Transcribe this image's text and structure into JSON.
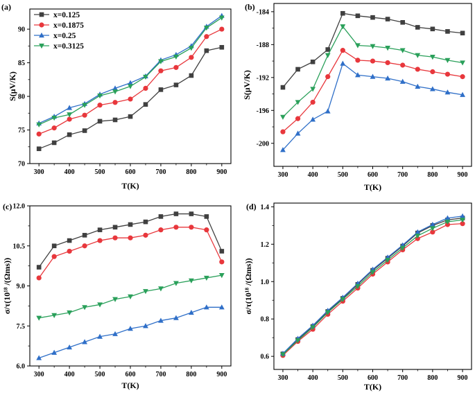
{
  "colors": {
    "x=0.125": "#404040",
    "x=0.1875": "#e8373c",
    "x=0.25": "#2f6fc8",
    "x=0.3125": "#2aa05a"
  },
  "legend": [
    "x=0.125",
    "x=0.1875",
    "x=0.25",
    "x=0.3125"
  ],
  "chart_data": [
    {
      "type": "line",
      "panel_label": "(a)",
      "xlabel": "T(K)",
      "ylabel": "S(μV/K)",
      "xlim": [
        270,
        930
      ],
      "ylim": [
        70,
        93
      ],
      "xticks": [
        300,
        400,
        500,
        600,
        700,
        800,
        900
      ],
      "yticks": [
        70,
        75,
        80,
        85,
        90
      ],
      "ytick_labels": [
        "70",
        "75",
        "80",
        "85",
        "90"
      ],
      "legend_position": "top-left",
      "x": [
        300,
        350,
        400,
        450,
        500,
        550,
        600,
        650,
        700,
        750,
        800,
        850,
        900
      ],
      "series": [
        {
          "name": "x=0.125",
          "marker": "square",
          "values": [
            72.2,
            73.1,
            74.3,
            74.9,
            76.3,
            76.5,
            77.0,
            78.8,
            81.0,
            81.7,
            83.1,
            86.8,
            87.3
          ]
        },
        {
          "name": "x=0.1875",
          "marker": "circle",
          "values": [
            74.4,
            75.3,
            76.6,
            77.2,
            78.7,
            79.1,
            79.6,
            81.2,
            83.8,
            84.3,
            85.8,
            88.9,
            90.0
          ]
        },
        {
          "name": "x=0.25",
          "marker": "triangle-up",
          "values": [
            76.0,
            77.0,
            78.3,
            78.9,
            80.3,
            81.2,
            82.0,
            83.0,
            85.4,
            86.2,
            87.5,
            90.4,
            92.0
          ]
        },
        {
          "name": "x=0.3125",
          "marker": "triangle-down",
          "values": [
            75.8,
            76.8,
            77.3,
            78.7,
            80.1,
            80.7,
            81.5,
            82.9,
            85.2,
            85.9,
            87.2,
            90.2,
            91.7
          ]
        }
      ]
    },
    {
      "type": "line",
      "panel_label": "(b)",
      "xlabel": "T(K)",
      "ylabel": "S(μV/K)",
      "xlim": [
        270,
        930
      ],
      "ylim": [
        -202.8,
        -183
      ],
      "xticks": [
        300,
        400,
        500,
        600,
        700,
        800,
        900
      ],
      "yticks": [
        -200,
        -196,
        -192,
        -188,
        -184
      ],
      "ytick_labels": [
        "-200",
        "-196",
        "-192",
        "-188",
        "-184"
      ],
      "x": [
        300,
        350,
        400,
        450,
        500,
        550,
        600,
        650,
        700,
        750,
        800,
        850,
        900
      ],
      "series": [
        {
          "name": "x=0.125",
          "marker": "square",
          "values": [
            -193.2,
            -191.0,
            -190.1,
            -188.6,
            -184.2,
            -184.5,
            -184.7,
            -184.9,
            -185.3,
            -185.9,
            -186.1,
            -186.4,
            -186.6
          ]
        },
        {
          "name": "x=0.1875",
          "marker": "circle",
          "values": [
            -198.6,
            -197.0,
            -195.0,
            -191.9,
            -188.7,
            -189.9,
            -190.0,
            -190.2,
            -190.5,
            -191.0,
            -191.3,
            -191.6,
            -191.9
          ]
        },
        {
          "name": "x=0.25",
          "marker": "triangle-up",
          "values": [
            -200.8,
            -198.8,
            -197.1,
            -196.1,
            -190.3,
            -191.7,
            -191.9,
            -192.1,
            -192.5,
            -193.1,
            -193.4,
            -193.8,
            -194.1
          ]
        },
        {
          "name": "x=0.3125",
          "marker": "triangle-down",
          "values": [
            -196.8,
            -195.0,
            -193.4,
            -189.3,
            -185.8,
            -188.1,
            -188.2,
            -188.4,
            -188.7,
            -189.3,
            -189.5,
            -189.9,
            -190.2
          ]
        }
      ]
    },
    {
      "type": "line",
      "panel_label": "(c)",
      "xlabel": "T(K)",
      "ylabel": "σ/τ(10¹⁸ /(Ωms))",
      "xlim": [
        270,
        930
      ],
      "ylim": [
        6.0,
        12.0
      ],
      "xticks": [
        300,
        400,
        500,
        600,
        700,
        800,
        900
      ],
      "yticks": [
        6.0,
        7.5,
        9.0,
        10.5,
        12.0
      ],
      "ytick_labels": [
        "6.0",
        "7.5",
        "9.0",
        "10.5",
        "12.0"
      ],
      "x": [
        300,
        350,
        400,
        450,
        500,
        550,
        600,
        650,
        700,
        750,
        800,
        850,
        900
      ],
      "series": [
        {
          "name": "x=0.125",
          "marker": "square",
          "values": [
            9.7,
            10.5,
            10.7,
            10.9,
            11.1,
            11.2,
            11.3,
            11.4,
            11.6,
            11.7,
            11.7,
            11.6,
            10.3
          ]
        },
        {
          "name": "x=0.1875",
          "marker": "circle",
          "values": [
            9.3,
            10.1,
            10.3,
            10.5,
            10.7,
            10.8,
            10.8,
            10.9,
            11.1,
            11.2,
            11.2,
            11.1,
            9.9
          ]
        },
        {
          "name": "x=0.25",
          "marker": "triangle-up",
          "values": [
            6.3,
            6.5,
            6.7,
            6.9,
            7.1,
            7.2,
            7.4,
            7.5,
            7.7,
            7.8,
            8.0,
            8.2,
            8.2
          ]
        },
        {
          "name": "x=0.3125",
          "marker": "triangle-down",
          "values": [
            7.8,
            7.9,
            8.0,
            8.2,
            8.3,
            8.5,
            8.6,
            8.8,
            8.9,
            9.1,
            9.2,
            9.3,
            9.4
          ]
        }
      ]
    },
    {
      "type": "line",
      "panel_label": "(d)",
      "xlabel": "T(K)",
      "ylabel": "σ/τ(10¹⁸ /(Ωms))",
      "xlim": [
        270,
        930
      ],
      "ylim": [
        0.53,
        1.42
      ],
      "xticks": [
        300,
        400,
        500,
        600,
        700,
        800,
        900
      ],
      "yticks": [
        0.6,
        0.8,
        1.0,
        1.2,
        1.4
      ],
      "ytick_labels": [
        "0.6",
        "0.8",
        "1.0",
        "1.2",
        "1.4"
      ],
      "x": [
        300,
        350,
        400,
        450,
        500,
        550,
        600,
        650,
        700,
        750,
        800,
        850,
        900
      ],
      "series": [
        {
          "name": "x=0.125",
          "marker": "square",
          "values": [
            0.613,
            0.69,
            0.76,
            0.84,
            0.91,
            0.985,
            1.06,
            1.125,
            1.19,
            1.26,
            1.3,
            1.33,
            1.34
          ]
        },
        {
          "name": "x=0.1875",
          "marker": "circle",
          "values": [
            0.605,
            0.68,
            0.745,
            0.825,
            0.895,
            0.965,
            1.04,
            1.105,
            1.17,
            1.23,
            1.265,
            1.305,
            1.31
          ]
        },
        {
          "name": "x=0.25",
          "marker": "triangle-up",
          "values": [
            0.615,
            0.695,
            0.765,
            0.845,
            0.915,
            0.99,
            1.065,
            1.13,
            1.195,
            1.265,
            1.305,
            1.34,
            1.35
          ]
        },
        {
          "name": "x=0.3125",
          "marker": "triangle-down",
          "values": [
            0.61,
            0.685,
            0.755,
            0.835,
            0.905,
            0.975,
            1.05,
            1.115,
            1.18,
            1.245,
            1.285,
            1.32,
            1.33
          ]
        }
      ]
    }
  ]
}
